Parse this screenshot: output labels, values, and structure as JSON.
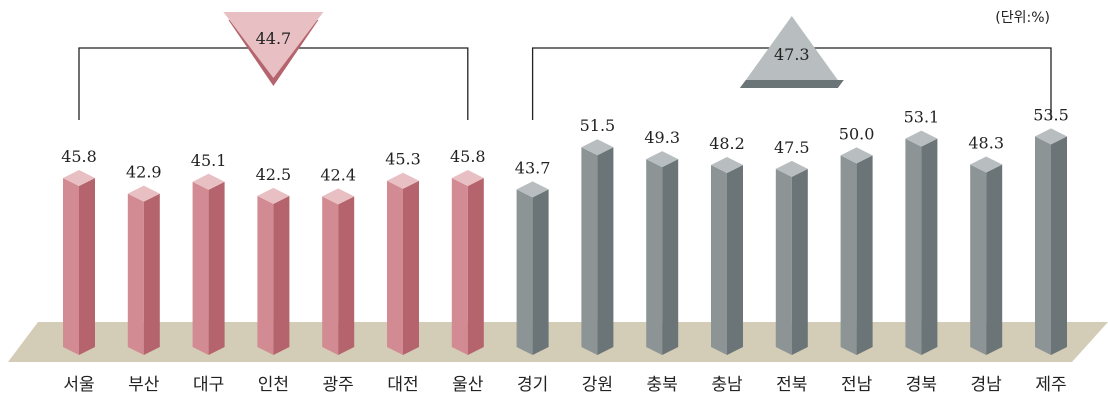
{
  "chart_data": {
    "type": "bar",
    "unit_label": "(단위:%)",
    "categories": [
      "서울",
      "부산",
      "대구",
      "인천",
      "광주",
      "대전",
      "울산",
      "경기",
      "강원",
      "충북",
      "충남",
      "전북",
      "전남",
      "경북",
      "경남",
      "제주"
    ],
    "values": [
      45.8,
      42.9,
      45.1,
      42.5,
      42.4,
      45.3,
      45.8,
      43.7,
      51.5,
      49.3,
      48.2,
      47.5,
      50.0,
      53.1,
      48.3,
      53.5
    ],
    "value_labels": [
      "45.8",
      "42.9",
      "45.1",
      "42.5",
      "42.4",
      "45.3",
      "45.8",
      "43.7",
      "51.5",
      "49.3",
      "48.2",
      "47.5",
      "50.0",
      "53.1",
      "48.3",
      "53.5"
    ],
    "groups": [
      {
        "average": "44.7",
        "from": 0,
        "to": 6,
        "color_front": "#d28b92",
        "color_side": "#b5636d",
        "color_top": "#e8c0c4"
      },
      {
        "average": "47.3",
        "from": 7,
        "to": 15,
        "color_front": "#8c9496",
        "color_side": "#6b7476",
        "color_top": "#b8bebf"
      }
    ],
    "floor_color": "#d3ccb6"
  }
}
